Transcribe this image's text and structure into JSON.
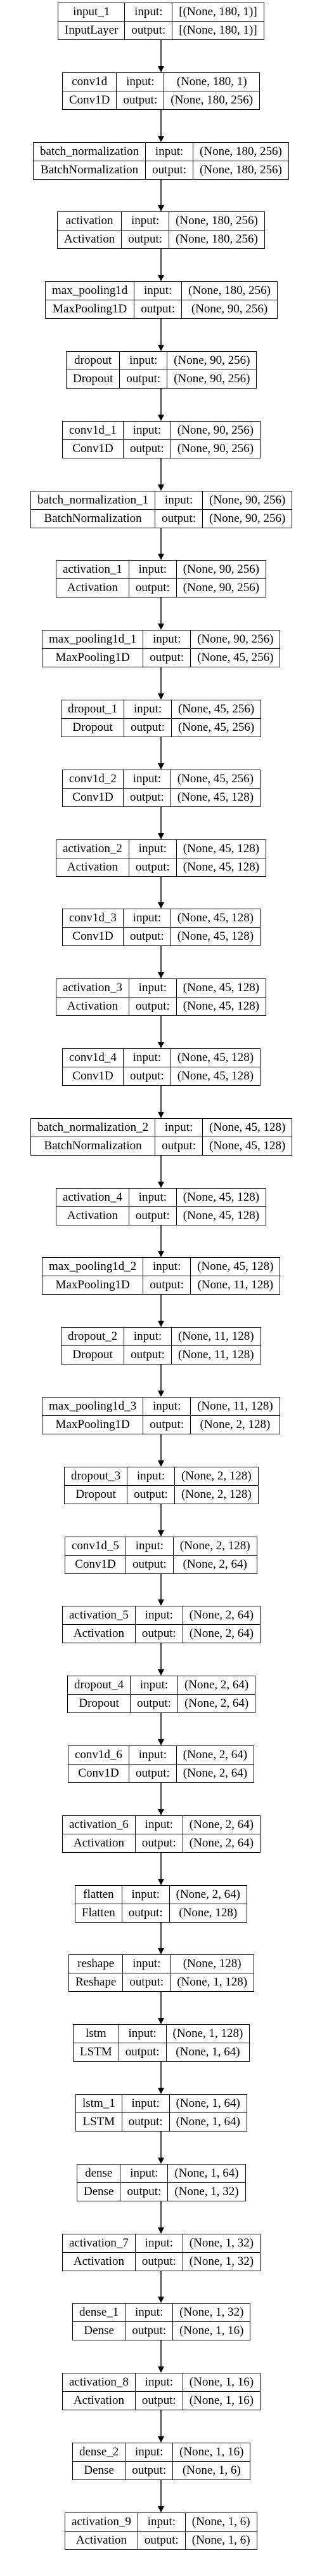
{
  "model_plot": {
    "io_labels": {
      "input": "input:",
      "output": "output:"
    },
    "layers": [
      {
        "name": "input_1",
        "type": "InputLayer",
        "input": "[(None, 180, 1)]",
        "output": "[(None, 180, 1)]"
      },
      {
        "name": "conv1d",
        "type": "Conv1D",
        "input": "(None, 180, 1)",
        "output": "(None, 180, 256)"
      },
      {
        "name": "batch_normalization",
        "type": "BatchNormalization",
        "input": "(None, 180, 256)",
        "output": "(None, 180, 256)"
      },
      {
        "name": "activation",
        "type": "Activation",
        "input": "(None, 180, 256)",
        "output": "(None, 180, 256)"
      },
      {
        "name": "max_pooling1d",
        "type": "MaxPooling1D",
        "input": "(None, 180, 256)",
        "output": "(None, 90, 256)"
      },
      {
        "name": "dropout",
        "type": "Dropout",
        "input": "(None, 90, 256)",
        "output": "(None, 90, 256)"
      },
      {
        "name": "conv1d_1",
        "type": "Conv1D",
        "input": "(None, 90, 256)",
        "output": "(None, 90, 256)"
      },
      {
        "name": "batch_normalization_1",
        "type": "BatchNormalization",
        "input": "(None, 90, 256)",
        "output": "(None, 90, 256)"
      },
      {
        "name": "activation_1",
        "type": "Activation",
        "input": "(None, 90, 256)",
        "output": "(None, 90, 256)"
      },
      {
        "name": "max_pooling1d_1",
        "type": "MaxPooling1D",
        "input": "(None, 90, 256)",
        "output": "(None, 45, 256)"
      },
      {
        "name": "dropout_1",
        "type": "Dropout",
        "input": "(None, 45, 256)",
        "output": "(None, 45, 256)"
      },
      {
        "name": "conv1d_2",
        "type": "Conv1D",
        "input": "(None, 45, 256)",
        "output": "(None, 45, 128)"
      },
      {
        "name": "activation_2",
        "type": "Activation",
        "input": "(None, 45, 128)",
        "output": "(None, 45, 128)"
      },
      {
        "name": "conv1d_3",
        "type": "Conv1D",
        "input": "(None, 45, 128)",
        "output": "(None, 45, 128)"
      },
      {
        "name": "activation_3",
        "type": "Activation",
        "input": "(None, 45, 128)",
        "output": "(None, 45, 128)"
      },
      {
        "name": "conv1d_4",
        "type": "Conv1D",
        "input": "(None, 45, 128)",
        "output": "(None, 45, 128)"
      },
      {
        "name": "batch_normalization_2",
        "type": "BatchNormalization",
        "input": "(None, 45, 128)",
        "output": "(None, 45, 128)"
      },
      {
        "name": "activation_4",
        "type": "Activation",
        "input": "(None, 45, 128)",
        "output": "(None, 45, 128)"
      },
      {
        "name": "max_pooling1d_2",
        "type": "MaxPooling1D",
        "input": "(None, 45, 128)",
        "output": "(None, 11, 128)"
      },
      {
        "name": "dropout_2",
        "type": "Dropout",
        "input": "(None, 11, 128)",
        "output": "(None, 11, 128)"
      },
      {
        "name": "max_pooling1d_3",
        "type": "MaxPooling1D",
        "input": "(None, 11, 128)",
        "output": "(None, 2, 128)"
      },
      {
        "name": "dropout_3",
        "type": "Dropout",
        "input": "(None, 2, 128)",
        "output": "(None, 2, 128)"
      },
      {
        "name": "conv1d_5",
        "type": "Conv1D",
        "input": "(None, 2, 128)",
        "output": "(None, 2, 64)"
      },
      {
        "name": "activation_5",
        "type": "Activation",
        "input": "(None, 2, 64)",
        "output": "(None, 2, 64)"
      },
      {
        "name": "dropout_4",
        "type": "Dropout",
        "input": "(None, 2, 64)",
        "output": "(None, 2, 64)"
      },
      {
        "name": "conv1d_6",
        "type": "Conv1D",
        "input": "(None, 2, 64)",
        "output": "(None, 2, 64)"
      },
      {
        "name": "activation_6",
        "type": "Activation",
        "input": "(None, 2, 64)",
        "output": "(None, 2, 64)"
      },
      {
        "name": "flatten",
        "type": "Flatten",
        "input": "(None, 2, 64)",
        "output": "(None, 128)"
      },
      {
        "name": "reshape",
        "type": "Reshape",
        "input": "(None, 128)",
        "output": "(None, 1, 128)"
      },
      {
        "name": "lstm",
        "type": "LSTM",
        "input": "(None, 1, 128)",
        "output": "(None, 1, 64)"
      },
      {
        "name": "lstm_1",
        "type": "LSTM",
        "input": "(None, 1, 64)",
        "output": "(None, 1, 64)"
      },
      {
        "name": "dense",
        "type": "Dense",
        "input": "(None, 1, 64)",
        "output": "(None, 1, 32)"
      },
      {
        "name": "activation_7",
        "type": "Activation",
        "input": "(None, 1, 32)",
        "output": "(None, 1, 32)"
      },
      {
        "name": "dense_1",
        "type": "Dense",
        "input": "(None, 1, 32)",
        "output": "(None, 1, 16)"
      },
      {
        "name": "activation_8",
        "type": "Activation",
        "input": "(None, 1, 16)",
        "output": "(None, 1, 16)"
      },
      {
        "name": "dense_2",
        "type": "Dense",
        "input": "(None, 1, 16)",
        "output": "(None, 1, 6)"
      },
      {
        "name": "activation_9",
        "type": "Activation",
        "input": "(None, 1, 6)",
        "output": "(None, 1, 6)"
      }
    ]
  }
}
